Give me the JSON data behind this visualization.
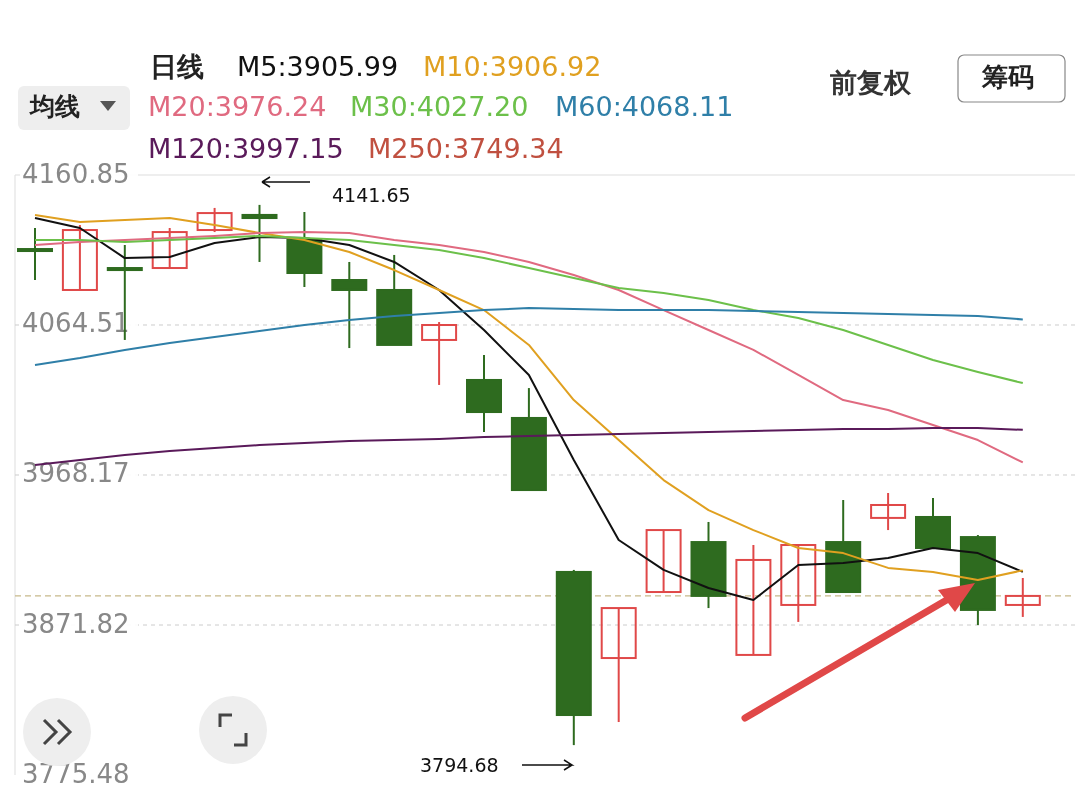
{
  "chart_data": {
    "type": "candlestick",
    "categories": [
      null,
      null,
      null,
      null,
      null,
      null,
      null,
      null,
      null,
      null,
      null,
      null,
      null,
      null,
      null,
      null,
      null,
      null,
      null,
      null,
      null,
      null,
      null
    ],
    "ohlc": [
      [
        4113.3,
        4126.8,
        4093.4,
        4112.7
      ],
      [
        4087.0,
        4128.7,
        4087.0,
        4125.5
      ],
      [
        4101.1,
        4115.9,
        4054.9,
        4099.8
      ],
      [
        4101.1,
        4126.8,
        4101.1,
        4124.2
      ],
      [
        4125.5,
        4139.7,
        4124.2,
        4136.4
      ],
      [
        4135.2,
        4141.65,
        4105.0,
        4133.2
      ],
      [
        4119.1,
        4137.1,
        4088.9,
        4097.9
      ],
      [
        4093.4,
        4105.0,
        4049.7,
        4087.0
      ],
      [
        4087.0,
        4109.5,
        4051.7,
        4051.7
      ],
      [
        4054.9,
        4066.4,
        4026.0,
        4064.5
      ],
      [
        4029.2,
        4045.2,
        3995.8,
        4008.6
      ],
      [
        4004.8,
        4024.0,
        3958.5,
        3958.5
      ],
      [
        3905.9,
        3907.2,
        3794.68,
        3814.0
      ],
      [
        3850.6,
        3882.7,
        3809.5,
        3882.7
      ],
      [
        3893.0,
        3932.8,
        3893.0,
        3932.8
      ],
      [
        3925.1,
        3938.0,
        3882.7,
        3890.5
      ],
      [
        3852.6,
        3923.2,
        3852.6,
        3913.6
      ],
      [
        3884.7,
        3923.2,
        3873.8,
        3923.2
      ],
      [
        3925.1,
        3952.1,
        3893.0,
        3893.0
      ],
      [
        3940.6,
        3956.6,
        3932.8,
        3948.9
      ],
      [
        3941.2,
        3953.4,
        3921.3,
        3921.3
      ],
      [
        3928.3,
        3929.6,
        3871.8,
        3881.5
      ],
      [
        3884.7,
        3902.0,
        3877.0,
        3890.5
      ]
    ],
    "colors": [
      "#2e6b1f",
      "#e04848",
      "#2e6b1f",
      "#e04848",
      "#e04848",
      "#2e6b1f",
      "#2e6b1f",
      "#2e6b1f",
      "#2e6b1f",
      "#e04848",
      "#2e6b1f",
      "#2e6b1f",
      "#2e6b1f",
      "#e04848",
      "#e04848",
      "#2e6b1f",
      "#e04848",
      "#e04848",
      "#2e6b1f",
      "#e04848",
      "#2e6b1f",
      "#2e6b1f",
      "#e04848"
    ],
    "series": [
      {
        "name": "M5:3905.99",
        "type": "line",
        "color": "#111111",
        "values": [
          4133.2,
          4126.8,
          4107.5,
          4108.2,
          4117.2,
          4121.0,
          4120.4,
          4115.9,
          4105.0,
          4087.0,
          4061.3,
          4032.4,
          3977.8,
          3926.4,
          3907.2,
          3895.6,
          3887.9,
          3910.4,
          3911.7,
          3914.9,
          3921.3,
          3918.0,
          3905.99
        ]
      },
      {
        "name": "M10:3906.92",
        "type": "line",
        "color": "#e0a020",
        "values": [
          4135.2,
          4130.7,
          4132.0,
          4133.2,
          4128.7,
          4123.6,
          4119.1,
          4111.4,
          4099.8,
          4087.0,
          4074.1,
          4051.7,
          4016.3,
          3990.6,
          3964.9,
          3945.6,
          3932.8,
          3921.3,
          3918.0,
          3908.5,
          3905.9,
          3900.7,
          3906.92
        ]
      },
      {
        "name": "M20:3976.24",
        "type": "line",
        "color": "#e06a80",
        "values": [
          4115.9,
          4117.8,
          4119.1,
          4120.4,
          4121.7,
          4123.6,
          4124.2,
          4123.6,
          4119.1,
          4115.9,
          4111.4,
          4105.0,
          4096.6,
          4087.0,
          4074.1,
          4061.3,
          4048.5,
          4032.4,
          4016.3,
          4009.9,
          4000.3,
          3990.6,
          3976.24
        ]
      },
      {
        "name": "M30:4027.20",
        "type": "line",
        "color": "#6cc04a",
        "values": [
          4119.1,
          4119.1,
          4117.8,
          4119.1,
          4120.4,
          4121.7,
          4120.4,
          4119.1,
          4115.9,
          4112.7,
          4107.5,
          4101.1,
          4094.7,
          4088.3,
          4085.1,
          4080.6,
          4074.1,
          4069.0,
          4061.3,
          4051.7,
          4042.0,
          4034.3,
          4027.2
        ]
      },
      {
        "name": "M60:4068.11",
        "type": "line",
        "color": "#2f7fa8",
        "values": [
          4038.8,
          4043.3,
          4048.5,
          4053.0,
          4056.8,
          4060.6,
          4064.5,
          4067.7,
          4070.3,
          4072.2,
          4074.1,
          4075.4,
          4074.8,
          4074.1,
          4074.1,
          4074.1,
          4073.5,
          4072.9,
          4072.2,
          4071.6,
          4071.0,
          4070.3,
          4068.11
        ]
      },
      {
        "name": "M120:3997.15",
        "type": "line",
        "color": "#5a1a5a",
        "values": [
          3974.6,
          3977.8,
          3981.0,
          3983.6,
          3985.5,
          3987.4,
          3988.7,
          3990.0,
          3990.6,
          3991.3,
          3992.6,
          3993.2,
          3993.9,
          3994.5,
          3995.1,
          3995.8,
          3996.4,
          3997.1,
          3997.7,
          3997.7,
          3998.4,
          3998.4,
          3997.15
        ]
      },
      {
        "name": "M250:3749.34",
        "type": "line",
        "color": "#c05040",
        "values": [
          null,
          null,
          null,
          null,
          null,
          null,
          null,
          null,
          null,
          null,
          null,
          null,
          null,
          null,
          null,
          null,
          null,
          null,
          null,
          null,
          null,
          null,
          null
        ]
      }
    ],
    "ylim": [
      3775.48,
      4160.85
    ],
    "yticks": [
      4160.85,
      4064.51,
      3968.17,
      3871.82,
      3775.48
    ],
    "grid": "y",
    "legend": "top left",
    "ref_lines": [
      {
        "axis": "y",
        "value": 3890.5,
        "color": "#c8b98a",
        "line_style": "dashed"
      }
    ],
    "annotations": [
      "日线",
      "均线",
      "前复权",
      "筹码",
      "4141.65",
      "3794.68"
    ]
  }
}
